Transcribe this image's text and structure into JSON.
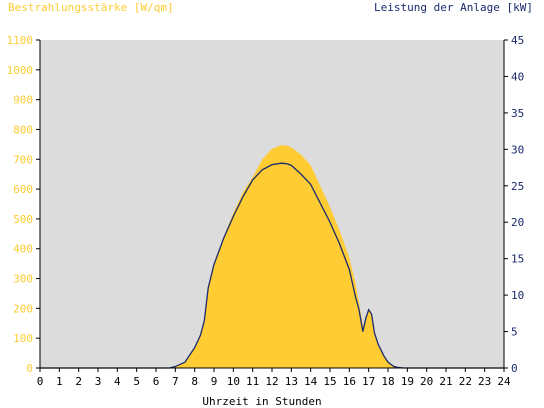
{
  "chart_data": {
    "type": "area",
    "left_axis_title": "Bestrahlungsstärke [W/qm]",
    "right_axis_title": "Leistung der Anlage [kW]",
    "xlabel": "Uhrzeit in Stunden",
    "xlim": [
      0,
      24
    ],
    "x_ticks": [
      "0",
      "1",
      "2",
      "3",
      "4",
      "5",
      "6",
      "7",
      "8",
      "9",
      "10",
      "11",
      "12",
      "13",
      "14",
      "15",
      "16",
      "17",
      "18",
      "19",
      "20",
      "21",
      "22",
      "23",
      "24"
    ],
    "ylim_left": [
      0,
      1100
    ],
    "y_ticks_left": [
      "0",
      "100",
      "200",
      "300",
      "400",
      "500",
      "600",
      "700",
      "800",
      "900",
      "1000",
      "1100"
    ],
    "ylim_right": [
      0,
      45
    ],
    "y_ticks_right": [
      "0",
      "5",
      "10",
      "15",
      "20",
      "25",
      "30",
      "35",
      "40",
      "45"
    ],
    "grid": false,
    "colors": {
      "plot_background": "#dcdcdc",
      "irradiance_fill": "#ffcc33",
      "left_axis": "#ffcc33",
      "power_line": "#1a2a6c",
      "right_axis": "#1a2a6c",
      "axis_frame": "#000000"
    },
    "series": [
      {
        "axis": "left",
        "kind": "area",
        "x": [
          0,
          6.7,
          7.0,
          7.5,
          8.0,
          8.3,
          8.5,
          8.7,
          9.0,
          9.5,
          10.0,
          10.5,
          11.0,
          11.5,
          12.0,
          12.5,
          12.8,
          13.0,
          13.5,
          14.0,
          14.5,
          15.0,
          15.5,
          16.0,
          16.3,
          16.5,
          16.7,
          16.85,
          17.0,
          17.15,
          17.3,
          17.5,
          17.8,
          18.0,
          18.3,
          18.5,
          18.8,
          19.0,
          24
        ],
        "values": [
          0,
          0,
          5,
          20,
          70,
          110,
          160,
          270,
          350,
          440,
          520,
          590,
          640,
          700,
          735,
          748,
          745,
          740,
          715,
          680,
          610,
          540,
          460,
          370,
          290,
          220,
          140,
          170,
          200,
          180,
          120,
          80,
          40,
          20,
          5,
          2,
          0,
          0,
          0
        ]
      },
      {
        "axis": "right",
        "kind": "line",
        "x": [
          0,
          6.7,
          7.0,
          7.5,
          8.0,
          8.3,
          8.5,
          8.7,
          9.0,
          9.5,
          10.0,
          10.5,
          11.0,
          11.5,
          12.0,
          12.5,
          12.8,
          13.0,
          13.5,
          14.0,
          14.5,
          15.0,
          15.5,
          16.0,
          16.3,
          16.5,
          16.7,
          16.85,
          17.0,
          17.15,
          17.3,
          17.5,
          17.8,
          18.0,
          18.3,
          18.5,
          18.8,
          19.0,
          24
        ],
        "values": [
          0,
          0,
          0.2,
          0.8,
          2.8,
          4.5,
          6.5,
          11.0,
          14.2,
          17.8,
          20.8,
          23.5,
          25.8,
          27.2,
          27.9,
          28.1,
          28.0,
          27.8,
          26.6,
          25.2,
          22.6,
          20.0,
          17.0,
          13.5,
          10.0,
          8.0,
          5.0,
          6.8,
          8.0,
          7.4,
          4.8,
          3.2,
          1.6,
          0.8,
          0.2,
          0.08,
          0,
          0,
          0
        ]
      }
    ]
  }
}
